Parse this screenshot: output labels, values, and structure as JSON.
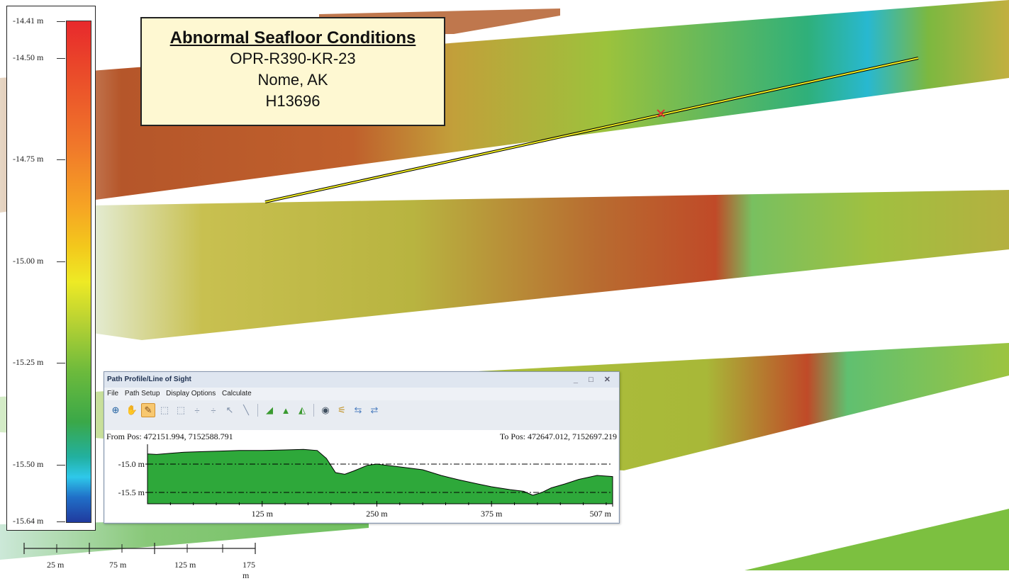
{
  "title_box": {
    "heading": "Abnormal Seafloor Conditions",
    "project": "OPR-R390-KR-23",
    "location": "Nome, AK",
    "survey": "H13696"
  },
  "color_legend": {
    "ticks": [
      {
        "label": "-14.41 m",
        "value": -14.41
      },
      {
        "label": "-14.50 m",
        "value": -14.5
      },
      {
        "label": "-14.75 m",
        "value": -14.75
      },
      {
        "label": "-15.00 m",
        "value": -15.0
      },
      {
        "label": "-15.25 m",
        "value": -15.25
      },
      {
        "label": "-15.50 m",
        "value": -15.5
      },
      {
        "label": "-15.64 m",
        "value": -15.64
      }
    ]
  },
  "scale_bar": {
    "labels": [
      "25 m",
      "75 m",
      "125 m",
      "175 m"
    ]
  },
  "profile_window": {
    "title": "Path Profile/Line of Sight",
    "window_buttons": "_ □ ✕",
    "menu": [
      "File",
      "Path Setup",
      "Display Options",
      "Calculate"
    ],
    "toolbar_icons": [
      "zoom-icon",
      "pan-hand-icon",
      "measure-ruler-icon",
      "select-area-icon",
      "select-area-plus-icon",
      "add-point-icon",
      "remove-point-icon",
      "pointer-edit-icon",
      "line-icon",
      "terrain-fill-icon",
      "terrain-peaks-icon",
      "terrain-view-icon",
      "line-of-sight-icon",
      "chart-options-icon",
      "export-icon",
      "import-icon"
    ],
    "from_pos": "From Pos: 472151.994, 7152588.791",
    "to_pos": "To Pos: 472647.012, 7152697.219",
    "y_labels": [
      "-15.0 m",
      "-15.5 m"
    ],
    "x_labels": [
      "125 m",
      "250 m",
      "375 m",
      "507 m"
    ],
    "colors": {
      "fill": "#2ea83a",
      "stroke": "#000000"
    }
  },
  "chart_data": {
    "type": "area",
    "x": [
      0,
      10,
      25,
      40,
      60,
      80,
      100,
      125,
      150,
      170,
      185,
      195,
      205,
      215,
      225,
      240,
      250,
      265,
      280,
      300,
      320,
      340,
      360,
      375,
      395,
      410,
      420,
      430,
      440,
      455,
      470,
      490,
      507
    ],
    "values": [
      -14.82,
      -14.83,
      -14.81,
      -14.79,
      -14.78,
      -14.77,
      -14.76,
      -14.76,
      -14.75,
      -14.74,
      -14.76,
      -14.9,
      -15.15,
      -15.18,
      -15.12,
      -15.02,
      -15.0,
      -15.03,
      -15.06,
      -15.1,
      -15.2,
      -15.28,
      -15.35,
      -15.4,
      -15.45,
      -15.48,
      -15.55,
      -15.5,
      -15.42,
      -15.35,
      -15.27,
      -15.2,
      -15.22
    ],
    "xlim": [
      0,
      507
    ],
    "ylim": [
      -15.7,
      -14.65
    ],
    "xlabel": "",
    "ylabel": ""
  }
}
